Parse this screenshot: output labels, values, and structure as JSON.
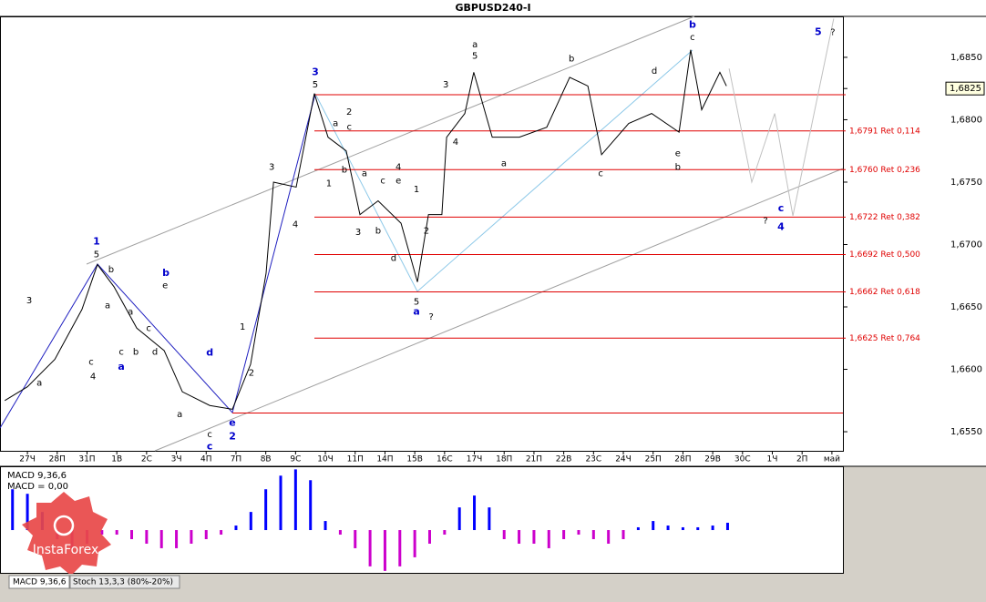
{
  "chart_data": [
    {
      "type": "line",
      "title": "GBPUSD240-I",
      "x": [
        -0.76,
        0,
        0.92,
        1.83,
        2.35,
        2.91,
        3.67,
        4.59,
        5.2,
        6.12,
        6.88,
        7.49,
        8.01,
        8.26,
        9.02,
        9.63,
        10.09,
        10.7,
        11.16,
        11.77,
        12.54,
        13.09,
        13.46,
        13.91,
        14.07,
        14.68,
        14.98,
        15.6,
        16.51,
        17.43,
        18.2,
        18.81,
        19.27,
        20.18,
        20.95,
        21.87,
        22.26,
        22.63,
        23.24,
        23.46
      ],
      "series": [
        {
          "color": "#000000",
          "values": [
            1.6575,
            1.6586,
            1.6608,
            1.6648,
            1.6684,
            1.6666,
            1.6633,
            1.6615,
            1.6582,
            1.6571,
            1.6568,
            1.6604,
            1.6677,
            1.675,
            1.6746,
            1.6821,
            1.6786,
            1.6775,
            1.6724,
            1.6735,
            1.6717,
            1.667,
            1.6724,
            1.6724,
            1.6786,
            1.6805,
            1.6838,
            1.6786,
            1.6786,
            1.6794,
            1.6834,
            1.6827,
            1.6772,
            1.6797,
            1.6805,
            1.679,
            1.6856,
            1.6808,
            1.6838,
            1.6827
          ]
        },
        {
          "color": "#c0c0c0",
          "x": [
            23.55,
            24.31,
            25.08,
            25.69,
            27.06
          ],
          "values": [
            1.6841,
            1.675,
            1.6805,
            1.6723,
            1.6881
          ]
        }
      ],
      "xlim": [
        -0.92,
        27.37
      ],
      "xticks": [
        {
          "value": 0,
          "label": "27Ч"
        },
        {
          "value": 1,
          "label": "28П"
        },
        {
          "value": 2,
          "label": "31П"
        },
        {
          "value": 3,
          "label": "1В"
        },
        {
          "value": 4,
          "label": "2С"
        },
        {
          "value": 5,
          "label": "3Ч"
        },
        {
          "value": 6,
          "label": "4П"
        },
        {
          "value": 7,
          "label": "7П"
        },
        {
          "value": 8,
          "label": "8В"
        },
        {
          "value": 9,
          "label": "9С"
        },
        {
          "value": 10,
          "label": "10Ч"
        },
        {
          "value": 11,
          "label": "11П"
        },
        {
          "value": 12,
          "label": "14П"
        },
        {
          "value": 13,
          "label": "15В"
        },
        {
          "value": 14,
          "label": "16С"
        },
        {
          "value": 15,
          "label": "17Ч"
        },
        {
          "value": 16,
          "label": "18П"
        },
        {
          "value": 17,
          "label": "21П"
        },
        {
          "value": 18,
          "label": "22В"
        },
        {
          "value": 19,
          "label": "23С"
        },
        {
          "value": 20,
          "label": "24Ч"
        },
        {
          "value": 21,
          "label": "25П"
        },
        {
          "value": 22,
          "label": "28П"
        },
        {
          "value": 23,
          "label": "29В"
        },
        {
          "value": 24,
          "label": "30С"
        },
        {
          "value": 25,
          "label": "1Ч"
        },
        {
          "value": 26,
          "label": "2П"
        },
        {
          "value": 27,
          "label": "май"
        }
      ],
      "ylim": [
        1.65347,
        1.68828
      ],
      "yticks": [
        {
          "value": 1.655,
          "label": "1,6550"
        },
        {
          "value": 1.66,
          "label": "1,6600"
        },
        {
          "value": 1.665,
          "label": "1,6650"
        },
        {
          "value": 1.67,
          "label": "1,6700"
        },
        {
          "value": 1.675,
          "label": "1,6750"
        },
        {
          "value": 1.68,
          "label": "1,6800"
        },
        {
          "value": 1.685,
          "label": "1,6850"
        }
      ],
      "last_price": {
        "value": 1.6825,
        "label": "1,6825"
      },
      "level_color": "#e00000",
      "range_high": 1.682,
      "range_low": 1.6565,
      "levels": [
        {
          "value": 1.6791,
          "label": "1,6791 Ret 0,114"
        },
        {
          "value": 1.676,
          "label": "1,6760 Ret 0,236"
        },
        {
          "value": 1.6722,
          "label": "1,6722 Ret 0,382"
        },
        {
          "value": 1.6692,
          "label": "1,6692 Ret 0,500"
        },
        {
          "value": 1.6662,
          "label": "1,6662 Ret 0,618"
        },
        {
          "value": 1.6625,
          "label": "1,6625 Ret 0,764"
        }
      ],
      "annotations": [
        {
          "text": "3",
          "x": 9.66,
          "y": 1.6838,
          "color": "#0000cc"
        },
        {
          "text": "1",
          "x": 2.32,
          "y": 1.6702,
          "color": "#0000cc"
        },
        {
          "text": "b",
          "x": 4.65,
          "y": 1.6677,
          "color": "#0000cc"
        },
        {
          "text": "a",
          "x": 3.15,
          "y": 1.6602,
          "color": "#0000cc"
        },
        {
          "text": "d",
          "x": 6.12,
          "y": 1.6613,
          "color": "#0000cc"
        },
        {
          "text": "e",
          "x": 6.88,
          "y": 1.6557,
          "color": "#0000cc"
        },
        {
          "text": "2",
          "x": 6.88,
          "y": 1.6546,
          "color": "#0000cc"
        },
        {
          "text": "c",
          "x": 6.12,
          "y": 1.6538,
          "color": "#0000cc"
        },
        {
          "text": "a",
          "x": 13.06,
          "y": 1.6646,
          "color": "#0000cc"
        },
        {
          "text": "b",
          "x": 22.32,
          "y": 1.6876,
          "color": "#0000cc"
        },
        {
          "text": "5",
          "x": 26.54,
          "y": 1.687,
          "color": "#0000cc"
        },
        {
          "text": "c",
          "x": 25.29,
          "y": 1.6729,
          "color": "#0000cc"
        },
        {
          "text": "4",
          "x": 25.29,
          "y": 1.6714,
          "color": "#0000cc"
        },
        {
          "text": "5",
          "x": 9.66,
          "y": 1.6828,
          "color": "#000000"
        },
        {
          "text": "a",
          "x": 10.34,
          "y": 1.6797,
          "color": "#000000"
        },
        {
          "text": "2",
          "x": 10.8,
          "y": 1.6806,
          "color": "#000000"
        },
        {
          "text": "c",
          "x": 10.8,
          "y": 1.6794,
          "color": "#000000"
        },
        {
          "text": "b",
          "x": 10.64,
          "y": 1.676,
          "color": "#000000"
        },
        {
          "text": "1",
          "x": 10.12,
          "y": 1.6749,
          "color": "#000000"
        },
        {
          "text": "a",
          "x": 11.31,
          "y": 1.6757,
          "color": "#000000"
        },
        {
          "text": "c",
          "x": 11.93,
          "y": 1.6751,
          "color": "#000000"
        },
        {
          "text": "e",
          "x": 12.45,
          "y": 1.6751,
          "color": "#000000"
        },
        {
          "text": "4",
          "x": 12.45,
          "y": 1.6762,
          "color": "#000000"
        },
        {
          "text": "b",
          "x": 11.77,
          "y": 1.6711,
          "color": "#000000"
        },
        {
          "text": "3",
          "x": 11.1,
          "y": 1.671,
          "color": "#000000"
        },
        {
          "text": "d",
          "x": 12.29,
          "y": 1.6689,
          "color": "#000000"
        },
        {
          "text": "1",
          "x": 13.06,
          "y": 1.6744,
          "color": "#000000"
        },
        {
          "text": "2",
          "x": 13.39,
          "y": 1.6711,
          "color": "#000000"
        },
        {
          "text": "5",
          "x": 13.06,
          "y": 1.6654,
          "color": "#000000"
        },
        {
          "text": "?",
          "x": 13.55,
          "y": 1.6642,
          "color": "#000000"
        },
        {
          "text": "3",
          "x": 14.04,
          "y": 1.6828,
          "color": "#000000"
        },
        {
          "text": "4",
          "x": 14.37,
          "y": 1.6782,
          "color": "#000000"
        },
        {
          "text": "a",
          "x": 15.02,
          "y": 1.686,
          "color": "#000000"
        },
        {
          "text": "5",
          "x": 15.02,
          "y": 1.6851,
          "color": "#000000"
        },
        {
          "text": "a",
          "x": 15.99,
          "y": 1.6765,
          "color": "#000000"
        },
        {
          "text": "b",
          "x": 18.26,
          "y": 1.6849,
          "color": "#000000"
        },
        {
          "text": "c",
          "x": 19.24,
          "y": 1.6757,
          "color": "#000000"
        },
        {
          "text": "d",
          "x": 21.04,
          "y": 1.6839,
          "color": "#000000"
        },
        {
          "text": "e",
          "x": 21.83,
          "y": 1.6773,
          "color": "#000000"
        },
        {
          "text": "b",
          "x": 21.83,
          "y": 1.6762,
          "color": "#000000"
        },
        {
          "text": "c",
          "x": 22.32,
          "y": 1.6866,
          "color": "#000000"
        },
        {
          "text": "?",
          "x": 27.03,
          "y": 1.687,
          "color": "#000000"
        },
        {
          "text": "?",
          "x": 24.77,
          "y": 1.6719,
          "color": "#000000"
        },
        {
          "text": "3",
          "x": 0.06,
          "y": 1.6655,
          "color": "#000000"
        },
        {
          "text": "a",
          "x": 0.4,
          "y": 1.6589,
          "color": "#000000"
        },
        {
          "text": "4",
          "x": 2.2,
          "y": 1.6594,
          "color": "#000000"
        },
        {
          "text": "c",
          "x": 2.14,
          "y": 1.6606,
          "color": "#000000"
        },
        {
          "text": "5",
          "x": 2.32,
          "y": 1.6692,
          "color": "#000000"
        },
        {
          "text": "b",
          "x": 2.81,
          "y": 1.668,
          "color": "#000000"
        },
        {
          "text": "a",
          "x": 2.69,
          "y": 1.6651,
          "color": "#000000"
        },
        {
          "text": "c",
          "x": 3.15,
          "y": 1.6614,
          "color": "#000000"
        },
        {
          "text": "b",
          "x": 3.64,
          "y": 1.6614,
          "color": "#000000"
        },
        {
          "text": "a",
          "x": 3.46,
          "y": 1.6646,
          "color": "#000000"
        },
        {
          "text": "c",
          "x": 4.07,
          "y": 1.6633,
          "color": "#000000"
        },
        {
          "text": "e",
          "x": 4.62,
          "y": 1.6667,
          "color": "#000000"
        },
        {
          "text": "d",
          "x": 4.28,
          "y": 1.6614,
          "color": "#000000"
        },
        {
          "text": "a",
          "x": 5.11,
          "y": 1.6564,
          "color": "#000000"
        },
        {
          "text": "c",
          "x": 6.12,
          "y": 1.6548,
          "color": "#000000"
        },
        {
          "text": "3",
          "x": 8.2,
          "y": 1.6762,
          "color": "#000000"
        },
        {
          "text": "4",
          "x": 8.99,
          "y": 1.6716,
          "color": "#000000"
        },
        {
          "text": "1",
          "x": 7.22,
          "y": 1.6634,
          "color": "#000000"
        },
        {
          "text": "2",
          "x": 7.52,
          "y": 1.6597,
          "color": "#000000"
        }
      ]
    },
    {
      "type": "bar",
      "title": "MACD 9,36,6",
      "subtitle": "MACD = 0,00",
      "x": [
        -0.5,
        0,
        0.5,
        1,
        1.5,
        2,
        2.5,
        3,
        3.5,
        4,
        4.5,
        5,
        5.5,
        6,
        6.5,
        7,
        7.5,
        8,
        8.5,
        9,
        9.5,
        10,
        10.5,
        11,
        11.5,
        12,
        12.5,
        13,
        13.5,
        14,
        14.5,
        15,
        15.5,
        16,
        16.5,
        17,
        17.5,
        18,
        18.5,
        19,
        19.5,
        20,
        20.5,
        21,
        21.5,
        22,
        22.5,
        23,
        23.5
      ],
      "series": [
        {
          "color": "#0000ff",
          "negative_color": "#cc00cc",
          "values": [
            0.00117,
            0.00104,
            0.00052,
            -0.00026,
            -0.00052,
            -0.00039,
            -0.00013,
            -0.00013,
            -0.00026,
            -0.00039,
            -0.00052,
            -0.00052,
            -0.00039,
            -0.00026,
            -0.00013,
            0.00013,
            0.00052,
            0.00117,
            0.00156,
            0.00174,
            0.00143,
            0.00026,
            -0.00013,
            -0.00052,
            -0.00104,
            -0.00117,
            -0.00104,
            -0.00078,
            -0.00039,
            -0.00013,
            0.00065,
            0.00099,
            0.00065,
            -0.00026,
            -0.00039,
            -0.00039,
            -0.00052,
            -0.00026,
            -0.00013,
            -0.00026,
            -0.00039,
            -0.00026,
            8e-05,
            0.00026,
            0.00013,
            8e-05,
            8e-05,
            0.00013,
            0.00021
          ]
        }
      ],
      "xlim": [
        -0.92,
        27.37
      ],
      "ylim": [
        -0.0012,
        0.00175
      ]
    }
  ],
  "indicator_tabs": [
    "MACD 9,36,6",
    "Stoch 13,3,3 (80%-20%)"
  ],
  "watermark": "InstaForex"
}
